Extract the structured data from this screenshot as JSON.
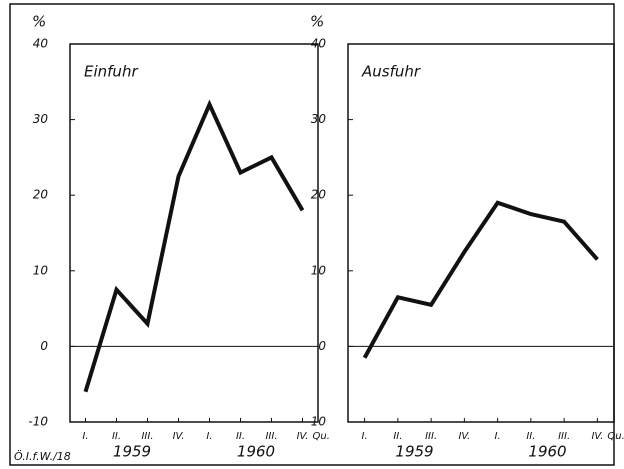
{
  "chart_data": [
    {
      "type": "line",
      "title": "Einfuhr",
      "ylabel": "%",
      "categories": [
        "I.",
        "II.",
        "III.",
        "IV.",
        "I.",
        "II.",
        "III.",
        "IV."
      ],
      "x_unit": "Qu.",
      "year_labels": [
        "1959",
        "1960"
      ],
      "values": [
        -6,
        7.5,
        3,
        22.5,
        32,
        23,
        25,
        18
      ],
      "color": "#111111",
      "ylim": [
        -10,
        40
      ],
      "yticks": [
        -10,
        0,
        10,
        20,
        30,
        40
      ]
    },
    {
      "type": "line",
      "title": "Ausfuhr",
      "ylabel": "%",
      "categories": [
        "I.",
        "II.",
        "III.",
        "IV.",
        "I.",
        "II.",
        "III.",
        "IV."
      ],
      "x_unit": "Qu.",
      "year_labels": [
        "1959",
        "1960"
      ],
      "values": [
        -1.5,
        6.5,
        5.5,
        12.5,
        19,
        17.5,
        16.5,
        11.5
      ],
      "color": "#111111",
      "ylim": [
        -10,
        40
      ],
      "yticks": [
        -10,
        0,
        10,
        20,
        30,
        40
      ]
    }
  ],
  "source": "Ö.I.f.W./18"
}
